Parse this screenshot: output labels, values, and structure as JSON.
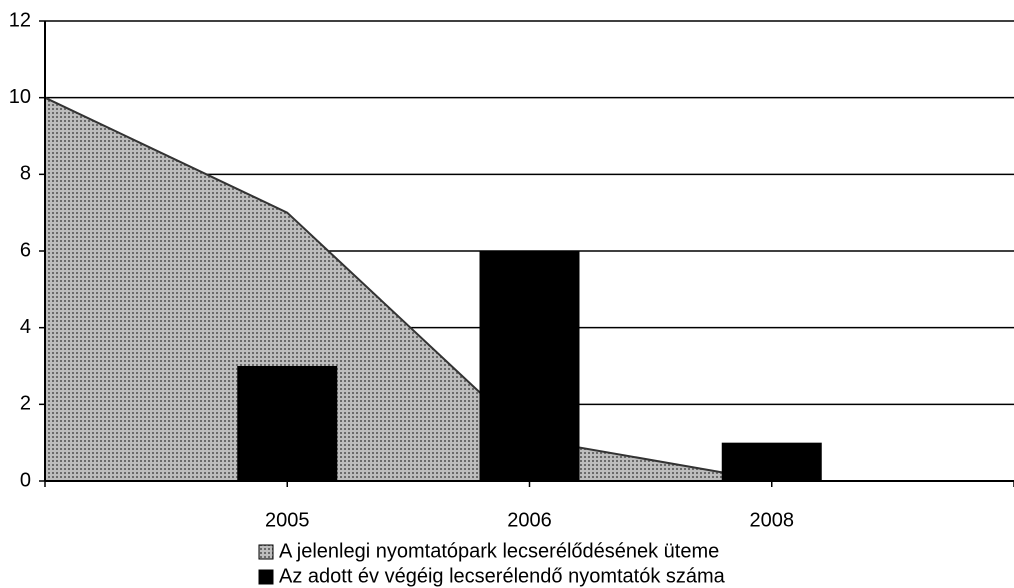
{
  "chart_data": {
    "type": "area-bar",
    "categories": [
      null,
      "2005",
      "2006",
      "2008",
      null
    ],
    "series": [
      {
        "name": "A jelenlegi nyomtatópark lecserélődésének üteme",
        "type": "area",
        "color": "#9a9a9a",
        "values": [
          10,
          7,
          1.1,
          0,
          null
        ]
      },
      {
        "name": "Az adott év végéig lecserélendő nyomtatók száma",
        "type": "bar",
        "color": "#000000",
        "values": [
          null,
          3,
          6,
          1,
          null
        ]
      }
    ],
    "ylim": [
      0,
      12
    ],
    "yticks": [
      0,
      2,
      4,
      6,
      8,
      10,
      12
    ],
    "grid": true,
    "legend": "bottom"
  }
}
